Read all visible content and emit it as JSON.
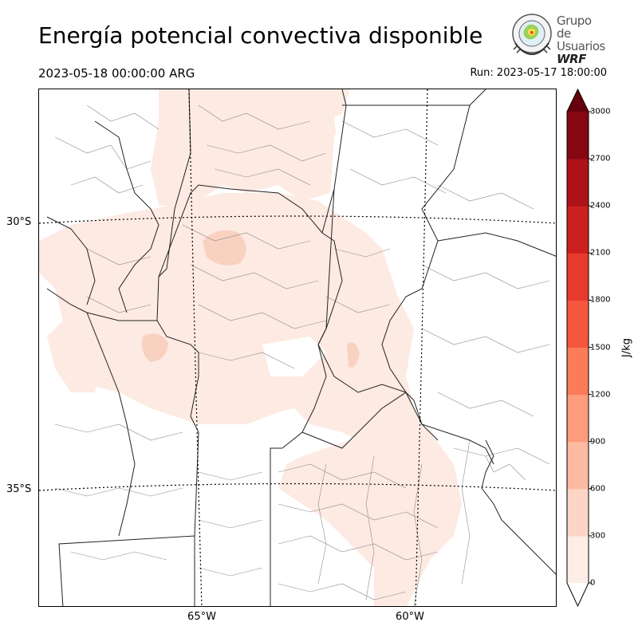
{
  "header": {
    "title": "Energía potencial convectiva disponible",
    "valid_time": "2023-05-18 00:00:00 ARG",
    "run_time": "Run: 2023-05-17 18:00:00"
  },
  "logo": {
    "line1": "Grupo de",
    "line2": "Usuarios",
    "line3": "WRF"
  },
  "map": {
    "variable": "CAPE",
    "latitude_labels": [
      "30°S",
      "35°S"
    ],
    "longitude_labels": [
      "65°W",
      "60°W"
    ],
    "shading_colors": {
      "c0_300": "#fdeae2",
      "c300_600": "#f8d1c1"
    }
  },
  "colorbar": {
    "unit": "J/kg",
    "ticks": [
      "0",
      "300",
      "600",
      "900",
      "1200",
      "1500",
      "1800",
      "2100",
      "2400",
      "2700",
      "3000"
    ],
    "colors": [
      "#feede6",
      "#fbd5c6",
      "#fcbaa0",
      "#fc9c7d",
      "#fb7b5b",
      "#f5573e",
      "#e8392d",
      "#cc1f20",
      "#ac1218",
      "#840712"
    ],
    "extend_over_color": "#67000d",
    "extend_under_color": "#ffffff"
  }
}
